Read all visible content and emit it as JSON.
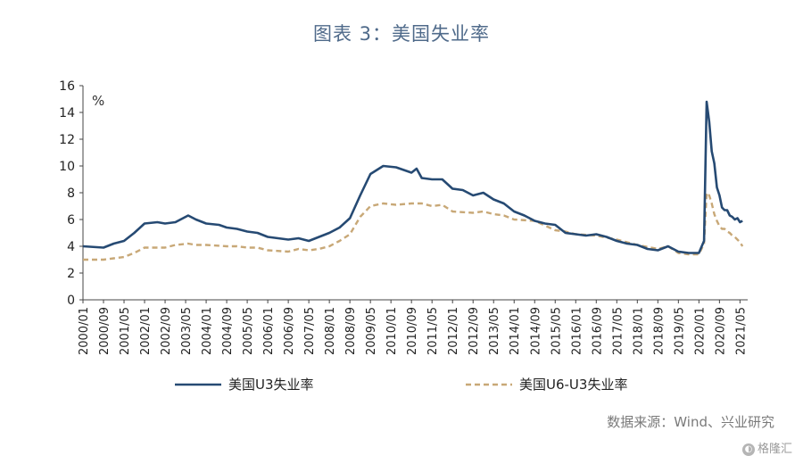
{
  "title": "图表 3：美国失业率",
  "source": "数据来源：Wind、兴业研究",
  "watermark": "格隆汇",
  "chart_data": {
    "type": "line",
    "title": "图表 3：美国失业率",
    "ylabel": "%",
    "xlabel": "",
    "ylim": [
      0,
      16
    ],
    "yticks": [
      0,
      2,
      4,
      6,
      8,
      10,
      12,
      14,
      16
    ],
    "xticks": [
      "2000/01",
      "2000/09",
      "2001/05",
      "2002/01",
      "2002/09",
      "2003/05",
      "2004/01",
      "2004/09",
      "2005/05",
      "2006/01",
      "2006/09",
      "2007/05",
      "2008/01",
      "2008/09",
      "2009/05",
      "2010/01",
      "2010/09",
      "2011/05",
      "2012/01",
      "2012/09",
      "2013/05",
      "2014/01",
      "2014/09",
      "2015/05",
      "2016/01",
      "2016/09",
      "2017/05",
      "2018/01",
      "2018/09",
      "2019/05",
      "2020/01",
      "2020/09",
      "2021/05"
    ],
    "x_range": [
      "2000/01",
      "2021/08"
    ],
    "grid": false,
    "legend": "bottom",
    "series": [
      {
        "name": "美国U3失业率",
        "color": "#264a73",
        "style": "solid",
        "points": [
          [
            "2000/01",
            4.0
          ],
          [
            "2000/09",
            3.9
          ],
          [
            "2001/01",
            4.2
          ],
          [
            "2001/05",
            4.4
          ],
          [
            "2001/09",
            5.0
          ],
          [
            "2002/01",
            5.7
          ],
          [
            "2002/06",
            5.8
          ],
          [
            "2002/09",
            5.7
          ],
          [
            "2003/01",
            5.8
          ],
          [
            "2003/06",
            6.3
          ],
          [
            "2003/09",
            6.0
          ],
          [
            "2004/01",
            5.7
          ],
          [
            "2004/06",
            5.6
          ],
          [
            "2004/09",
            5.4
          ],
          [
            "2005/01",
            5.3
          ],
          [
            "2005/05",
            5.1
          ],
          [
            "2005/09",
            5.0
          ],
          [
            "2006/01",
            4.7
          ],
          [
            "2006/05",
            4.6
          ],
          [
            "2006/09",
            4.5
          ],
          [
            "2007/01",
            4.6
          ],
          [
            "2007/05",
            4.4
          ],
          [
            "2007/09",
            4.7
          ],
          [
            "2008/01",
            5.0
          ],
          [
            "2008/05",
            5.4
          ],
          [
            "2008/09",
            6.1
          ],
          [
            "2009/01",
            7.8
          ],
          [
            "2009/05",
            9.4
          ],
          [
            "2009/10",
            10.0
          ],
          [
            "2010/03",
            9.9
          ],
          [
            "2010/09",
            9.5
          ],
          [
            "2010/11",
            9.8
          ],
          [
            "2011/01",
            9.1
          ],
          [
            "2011/05",
            9.0
          ],
          [
            "2011/09",
            9.0
          ],
          [
            "2012/01",
            8.3
          ],
          [
            "2012/05",
            8.2
          ],
          [
            "2012/09",
            7.8
          ],
          [
            "2013/01",
            8.0
          ],
          [
            "2013/05",
            7.5
          ],
          [
            "2013/09",
            7.2
          ],
          [
            "2014/01",
            6.6
          ],
          [
            "2014/05",
            6.3
          ],
          [
            "2014/09",
            5.9
          ],
          [
            "2015/01",
            5.7
          ],
          [
            "2015/05",
            5.6
          ],
          [
            "2015/09",
            5.0
          ],
          [
            "2016/01",
            4.9
          ],
          [
            "2016/05",
            4.8
          ],
          [
            "2016/09",
            4.9
          ],
          [
            "2017/01",
            4.7
          ],
          [
            "2017/05",
            4.4
          ],
          [
            "2017/09",
            4.2
          ],
          [
            "2018/01",
            4.1
          ],
          [
            "2018/05",
            3.8
          ],
          [
            "2018/09",
            3.7
          ],
          [
            "2019/01",
            4.0
          ],
          [
            "2019/05",
            3.6
          ],
          [
            "2019/09",
            3.5
          ],
          [
            "2020/01",
            3.5
          ],
          [
            "2020/03",
            4.4
          ],
          [
            "2020/04",
            14.8
          ],
          [
            "2020/05",
            13.3
          ],
          [
            "2020/06",
            11.1
          ],
          [
            "2020/07",
            10.2
          ],
          [
            "2020/08",
            8.4
          ],
          [
            "2020/09",
            7.8
          ],
          [
            "2020/10",
            6.9
          ],
          [
            "2020/11",
            6.7
          ],
          [
            "2020/12",
            6.7
          ],
          [
            "2021/01",
            6.3
          ],
          [
            "2021/02",
            6.2
          ],
          [
            "2021/03",
            6.0
          ],
          [
            "2021/04",
            6.1
          ],
          [
            "2021/05",
            5.8
          ],
          [
            "2021/06",
            5.9
          ]
        ]
      },
      {
        "name": "美国U6-U3失业率",
        "color": "#c8a877",
        "style": "dashed",
        "points": [
          [
            "2000/01",
            3.0
          ],
          [
            "2000/09",
            3.0
          ],
          [
            "2001/01",
            3.1
          ],
          [
            "2001/05",
            3.2
          ],
          [
            "2001/09",
            3.5
          ],
          [
            "2002/01",
            3.9
          ],
          [
            "2002/09",
            3.9
          ],
          [
            "2003/01",
            4.1
          ],
          [
            "2003/06",
            4.2
          ],
          [
            "2003/09",
            4.1
          ],
          [
            "2004/01",
            4.1
          ],
          [
            "2004/09",
            4.0
          ],
          [
            "2005/01",
            4.0
          ],
          [
            "2005/05",
            3.9
          ],
          [
            "2005/09",
            3.9
          ],
          [
            "2006/01",
            3.7
          ],
          [
            "2006/09",
            3.6
          ],
          [
            "2007/01",
            3.8
          ],
          [
            "2007/05",
            3.7
          ],
          [
            "2007/09",
            3.8
          ],
          [
            "2008/01",
            4.0
          ],
          [
            "2008/05",
            4.4
          ],
          [
            "2008/09",
            4.9
          ],
          [
            "2009/01",
            6.2
          ],
          [
            "2009/05",
            7.0
          ],
          [
            "2009/10",
            7.2
          ],
          [
            "2010/03",
            7.1
          ],
          [
            "2010/09",
            7.2
          ],
          [
            "2011/01",
            7.2
          ],
          [
            "2011/05",
            7.0
          ],
          [
            "2011/09",
            7.1
          ],
          [
            "2012/01",
            6.6
          ],
          [
            "2012/09",
            6.5
          ],
          [
            "2013/01",
            6.6
          ],
          [
            "2013/05",
            6.4
          ],
          [
            "2013/09",
            6.3
          ],
          [
            "2014/01",
            6.0
          ],
          [
            "2014/09",
            5.9
          ],
          [
            "2015/05",
            5.2
          ],
          [
            "2015/09",
            5.1
          ],
          [
            "2016/01",
            4.9
          ],
          [
            "2016/09",
            4.8
          ],
          [
            "2017/05",
            4.5
          ],
          [
            "2017/09",
            4.3
          ],
          [
            "2018/01",
            4.1
          ],
          [
            "2018/09",
            3.8
          ],
          [
            "2019/01",
            4.0
          ],
          [
            "2019/05",
            3.5
          ],
          [
            "2019/09",
            3.4
          ],
          [
            "2020/01",
            3.4
          ],
          [
            "2020/03",
            4.2
          ],
          [
            "2020/04",
            8.0
          ],
          [
            "2020/05",
            7.8
          ],
          [
            "2020/06",
            7.2
          ],
          [
            "2020/07",
            6.4
          ],
          [
            "2020/08",
            5.9
          ],
          [
            "2020/09",
            5.5
          ],
          [
            "2020/10",
            5.3
          ],
          [
            "2020/11",
            5.3
          ],
          [
            "2020/12",
            5.1
          ],
          [
            "2021/01",
            5.0
          ],
          [
            "2021/02",
            4.8
          ],
          [
            "2021/03",
            4.7
          ],
          [
            "2021/04",
            4.5
          ],
          [
            "2021/05",
            4.3
          ],
          [
            "2021/06",
            4.0
          ]
        ]
      }
    ]
  }
}
